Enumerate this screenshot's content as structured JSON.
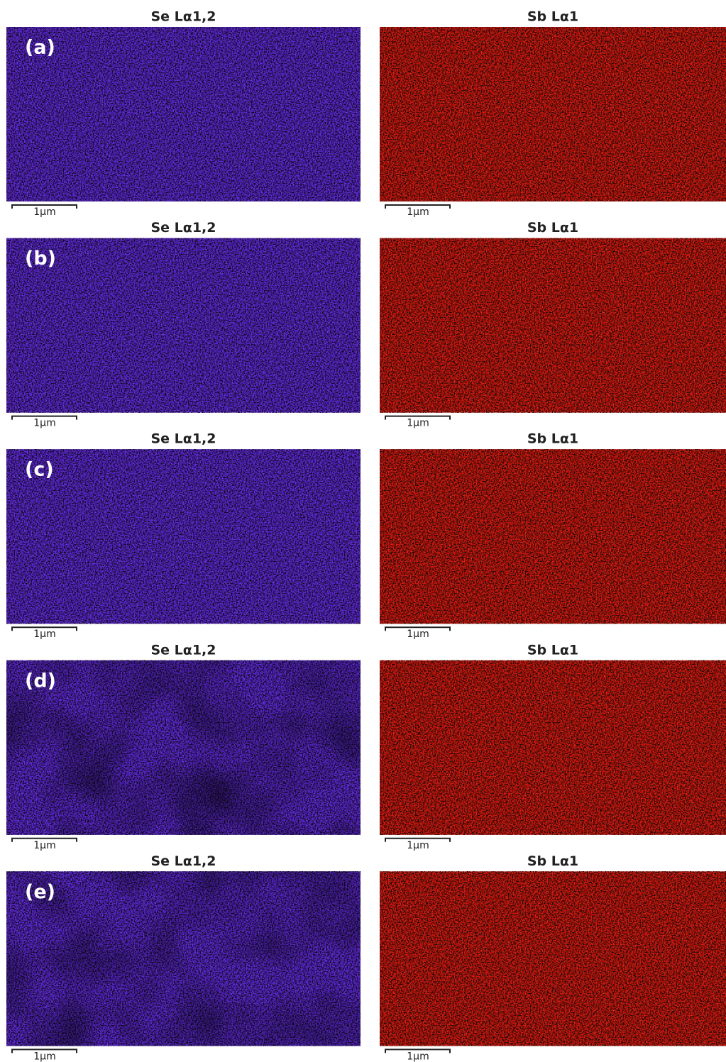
{
  "rows": [
    {
      "label": "(a)",
      "panels": [
        {
          "title": "Se Lα1,2",
          "scale": "1μm"
        },
        {
          "title": "Sb Lα1",
          "scale": "1μm"
        }
      ]
    },
    {
      "label": "(b)",
      "panels": [
        {
          "title": "Se Lα1,2",
          "scale": "1μm"
        },
        {
          "title": "Sb Lα1",
          "scale": "1μm"
        }
      ]
    },
    {
      "label": "(c)",
      "panels": [
        {
          "title": "Se Lα1,2",
          "scale": "1μm"
        },
        {
          "title": "Sb Lα1",
          "scale": "1μm"
        }
      ]
    },
    {
      "label": "(d)",
      "panels": [
        {
          "title": "Se Lα1,2",
          "scale": "1μm"
        },
        {
          "title": "Sb Lα1",
          "scale": "1μm"
        }
      ]
    },
    {
      "label": "(e)",
      "panels": [
        {
          "title": "Se Lα1,2",
          "scale": "1μm"
        },
        {
          "title": "Sb Lα1",
          "scale": "1μm"
        }
      ]
    }
  ]
}
